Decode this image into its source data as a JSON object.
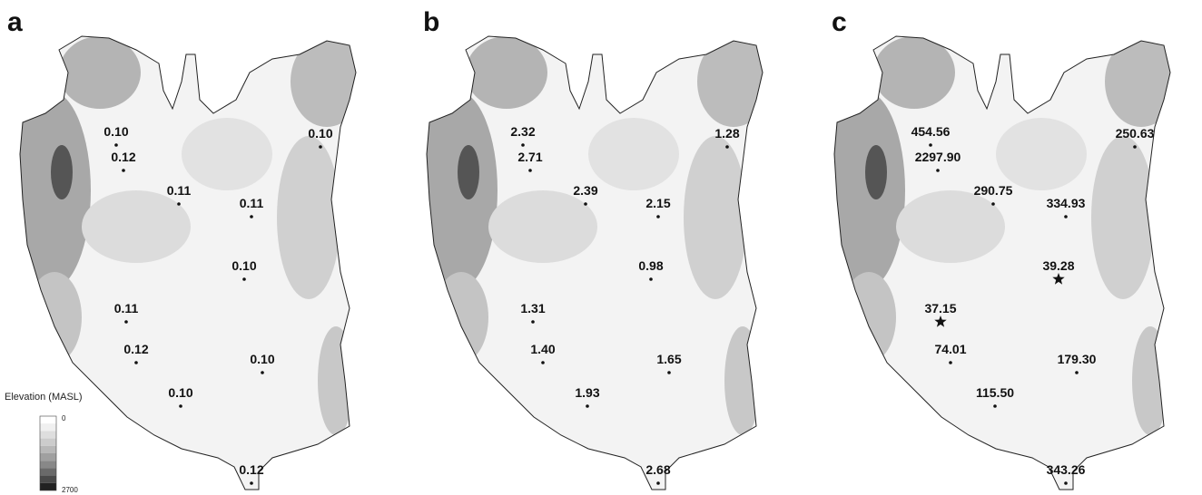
{
  "panels": [
    {
      "label": "a",
      "stations": [
        "0.10",
        "0.12",
        "0.11",
        "0.11",
        "0.10",
        "0.10",
        "0.11",
        "0.12",
        "0.10",
        "0.10",
        "0.12"
      ]
    },
    {
      "label": "b",
      "stations": [
        "2.32",
        "2.71",
        "2.39",
        "2.15",
        "1.28",
        "0.98",
        "1.31",
        "1.40",
        "1.93",
        "1.65",
        "2.68"
      ]
    },
    {
      "label": "c",
      "stations": [
        "454.56",
        "2297.90",
        "290.75",
        "334.93",
        "250.63",
        "39.28",
        "37.15",
        "74.01",
        "115.50",
        "179.30",
        "343.26"
      ]
    }
  ],
  "legend": {
    "title": "Elevation (MASL)",
    "min": "0",
    "max": "2700"
  }
}
